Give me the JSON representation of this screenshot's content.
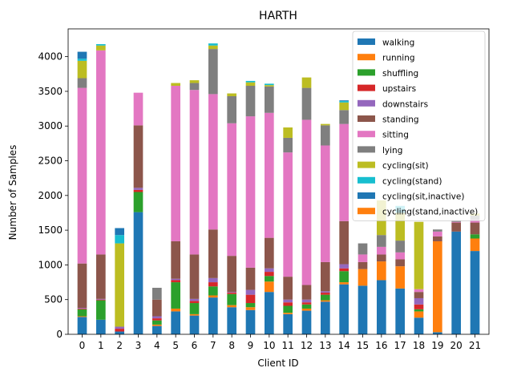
{
  "chart_data": {
    "type": "bar",
    "stacked": true,
    "title": "HARTH",
    "xlabel": "Client ID",
    "ylabel": "Number of Samples",
    "ylim": [
      0,
      4400
    ],
    "yticks": [
      0,
      500,
      1000,
      1500,
      2000,
      2500,
      3000,
      3500,
      4000
    ],
    "grid": false,
    "legend_position": "top-right",
    "categories": [
      "0",
      "1",
      "2",
      "3",
      "4",
      "5",
      "6",
      "7",
      "8",
      "9",
      "10",
      "11",
      "12",
      "13",
      "14",
      "15",
      "16",
      "17",
      "18",
      "19",
      "20",
      "21"
    ],
    "series": [
      {
        "name": "walking",
        "color": "#1f77b4",
        "values": [
          250,
          210,
          40,
          1760,
          120,
          330,
          270,
          530,
          390,
          350,
          610,
          290,
          340,
          470,
          720,
          700,
          780,
          660,
          240,
          30,
          1480,
          1200
        ]
      },
      {
        "name": "running",
        "color": "#ff7f0e",
        "values": [
          10,
          0,
          0,
          0,
          20,
          40,
          20,
          30,
          30,
          40,
          150,
          20,
          30,
          20,
          30,
          240,
          270,
          320,
          90,
          1310,
          0,
          180
        ]
      },
      {
        "name": "shuffling",
        "color": "#2ca02c",
        "values": [
          100,
          280,
          0,
          290,
          60,
          380,
          160,
          130,
          160,
          60,
          80,
          100,
          60,
          80,
          160,
          0,
          0,
          0,
          30,
          0,
          0,
          60
        ]
      },
      {
        "name": "upstairs",
        "color": "#d62728",
        "values": [
          10,
          10,
          40,
          30,
          30,
          30,
          30,
          60,
          20,
          120,
          60,
          50,
          30,
          30,
          40,
          0,
          0,
          0,
          70,
          0,
          0,
          0
        ]
      },
      {
        "name": "downstairs",
        "color": "#9467bd",
        "values": [
          10,
          10,
          30,
          30,
          30,
          20,
          30,
          60,
          10,
          70,
          50,
          40,
          40,
          20,
          60,
          0,
          0,
          0,
          90,
          0,
          0,
          0
        ]
      },
      {
        "name": "standing",
        "color": "#8c564b",
        "values": [
          640,
          640,
          0,
          900,
          240,
          540,
          640,
          700,
          520,
          320,
          440,
          330,
          210,
          420,
          620,
          100,
          100,
          100,
          90,
          70,
          130,
          170
        ]
      },
      {
        "name": "sitting",
        "color": "#e377c2",
        "values": [
          2530,
          2940,
          0,
          470,
          0,
          2240,
          2370,
          1950,
          1910,
          2180,
          1800,
          1790,
          2380,
          1680,
          1400,
          110,
          110,
          100,
          40,
          70,
          10,
          40
        ]
      },
      {
        "name": "lying",
        "color": "#7f7f7f",
        "values": [
          140,
          0,
          0,
          0,
          170,
          0,
          100,
          650,
          390,
          440,
          380,
          210,
          460,
          290,
          200,
          160,
          170,
          170,
          0,
          30,
          20,
          60
        ]
      },
      {
        "name": "cycling(sit)",
        "color": "#bcbd22",
        "values": [
          250,
          70,
          1200,
          0,
          0,
          40,
          40,
          50,
          40,
          50,
          20,
          150,
          150,
          20,
          110,
          0,
          500,
          400,
          970,
          0,
          0,
          30
        ]
      },
      {
        "name": "cycling(stand)",
        "color": "#17becf",
        "values": [
          30,
          20,
          120,
          0,
          0,
          0,
          0,
          30,
          0,
          20,
          20,
          0,
          0,
          0,
          20,
          0,
          0,
          100,
          0,
          0,
          0,
          0
        ]
      },
      {
        "name": "cycling(sit,inactive)",
        "color": "#1f77b4",
        "values": [
          100,
          0,
          100,
          0,
          0,
          0,
          0,
          0,
          0,
          0,
          0,
          0,
          0,
          0,
          10,
          0,
          0,
          0,
          0,
          0,
          0,
          0
        ]
      },
      {
        "name": "cycling(stand,inactive)",
        "color": "#ff7f0e",
        "values": [
          0,
          0,
          0,
          0,
          0,
          0,
          0,
          0,
          0,
          0,
          0,
          0,
          0,
          0,
          0,
          0,
          0,
          0,
          0,
          0,
          0,
          0
        ]
      }
    ]
  }
}
